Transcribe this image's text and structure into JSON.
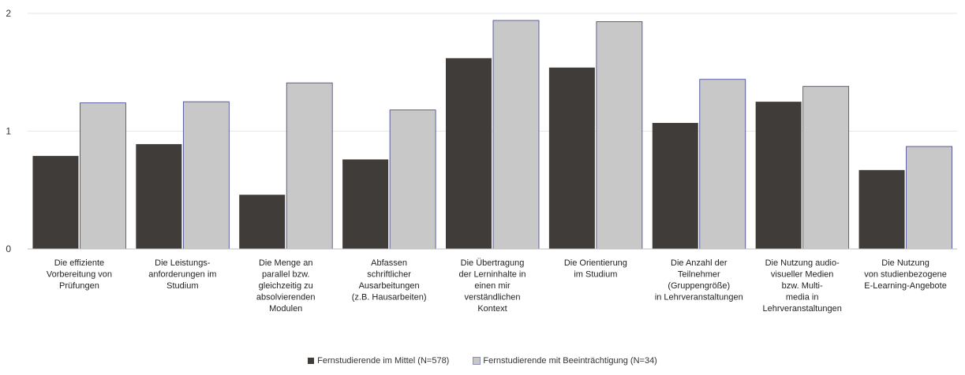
{
  "chart_data": {
    "type": "bar",
    "title": "",
    "xlabel": "",
    "ylabel": "",
    "ylim": [
      0,
      2
    ],
    "yticks": [
      0,
      1,
      2
    ],
    "grid": true,
    "legend_position": "bottom",
    "categories": [
      [
        "Die effiziente",
        "Vorbereitung von",
        "Prüfungen"
      ],
      [
        "Die Leistungs-",
        "anforderungen im",
        "Studium"
      ],
      [
        "Die Menge an",
        "parallel bzw.",
        "gleichzeitig zu",
        "absolvierenden",
        "Modulen"
      ],
      [
        "Abfassen",
        "schriftlicher",
        "Ausarbeitungen",
        "(z.B. Hausarbeiten)"
      ],
      [
        "Die Übertragung",
        "der Lerninhalte in",
        "einen mir",
        "verständlichen",
        "Kontext"
      ],
      [
        "Die Orientierung",
        "im Studium"
      ],
      [
        "Die Anzahl der",
        "Teilnehmer",
        "(Gruppengröße)",
        "in Lehrveranstaltungen"
      ],
      [
        "Die Nutzung audio-",
        "visueller Medien",
        "bzw. Multi-",
        "media in",
        "Lehrveranstaltungen"
      ],
      [
        "Die Nutzung",
        "von studienbezogene",
        "E-Learning-Angebote"
      ]
    ],
    "series": [
      {
        "name": "Fernstudierende im Mittel (N=578)",
        "color": "#403c3a",
        "values": [
          0.79,
          0.89,
          0.46,
          0.76,
          1.62,
          1.54,
          1.07,
          1.25,
          0.67
        ]
      },
      {
        "name": "Fernstudierende mit Beeinträchtigung (N=34)",
        "color": "#c8c8c8",
        "values": [
          1.24,
          1.25,
          1.41,
          1.18,
          1.94,
          1.93,
          1.44,
          1.38,
          0.87
        ]
      }
    ]
  }
}
